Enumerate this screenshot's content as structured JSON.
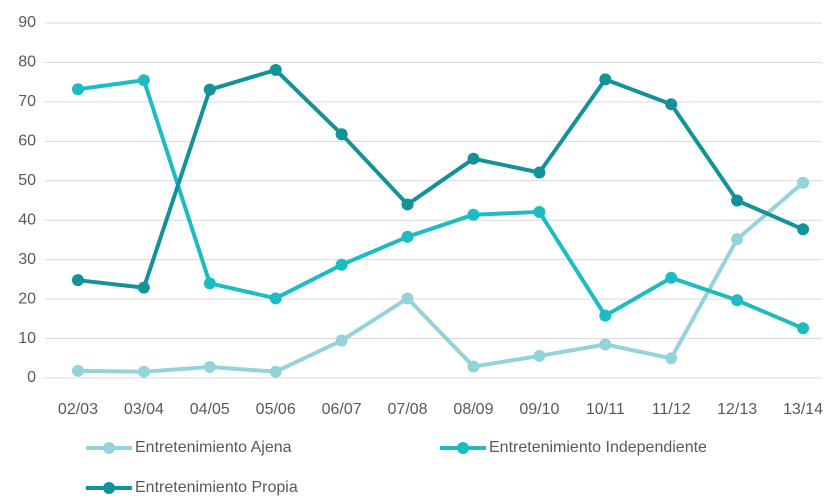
{
  "chart_data": {
    "type": "line",
    "categories": [
      "02/03",
      "03/04",
      "04/05",
      "05/06",
      "06/07",
      "07/08",
      "08/09",
      "09/10",
      "10/11",
      "11/12",
      "12/13",
      "13/14"
    ],
    "series": [
      {
        "name": "Entretenimiento Ajena",
        "color": "#92d4da",
        "values": [
          1.8,
          1.6,
          2.8,
          1.6,
          9.5,
          20.2,
          2.9,
          5.6,
          8.5,
          5.0,
          35.2,
          49.5
        ]
      },
      {
        "name": "Entretenimiento Independiente",
        "color": "#1cbcc4",
        "values": [
          73.2,
          75.5,
          24.0,
          20.2,
          28.7,
          35.8,
          41.4,
          42.1,
          15.8,
          25.4,
          19.7,
          12.6
        ]
      },
      {
        "name": "Entretenimiento Propia",
        "color": "#13929a",
        "values": [
          24.8,
          22.9,
          73.1,
          78.1,
          61.8,
          44.0,
          55.6,
          52.1,
          75.7,
          69.4,
          45.0,
          37.7
        ]
      }
    ],
    "ylim": [
      0,
      90
    ],
    "yticks": [
      0,
      10,
      20,
      30,
      40,
      50,
      60,
      70,
      80,
      90
    ],
    "grid": true,
    "legend": "bottom"
  }
}
